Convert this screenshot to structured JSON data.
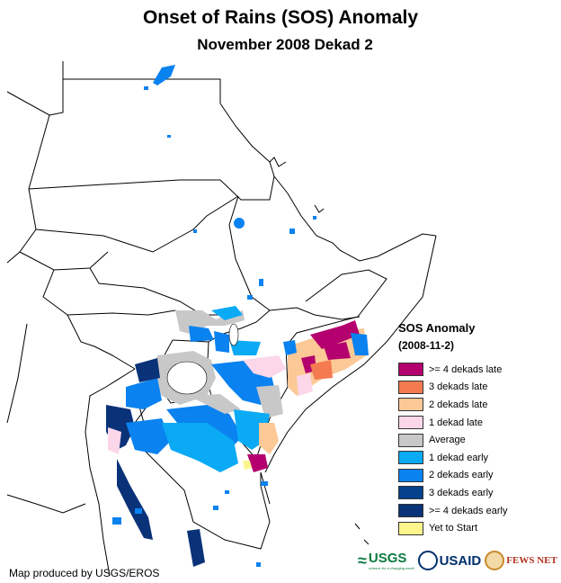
{
  "map": {
    "title": "Onset of Rains (SOS) Anomaly",
    "subtitle": "November 2008 Dekad 2",
    "credit": "Map produced by USGS/EROS"
  },
  "legend": {
    "title": "SOS Anomaly",
    "period": "(2008-11-2)",
    "items": [
      {
        "label": ">= 4 dekads late",
        "color": "#b4006e"
      },
      {
        "label": "3 dekads late",
        "color": "#f47a50"
      },
      {
        "label": "2 dekads late",
        "color": "#fcc896"
      },
      {
        "label": "1 dekad late",
        "color": "#fcd7ea"
      },
      {
        "label": "Average",
        "color": "#c8c8c8"
      },
      {
        "label": "1 dekad early",
        "color": "#0aaaf5"
      },
      {
        "label": "2 dekads early",
        "color": "#0a82f0"
      },
      {
        "label": "3 dekads early",
        "color": "#05418c"
      },
      {
        "label": ">= 4 dekads early",
        "color": "#0a3278"
      },
      {
        "label": "Yet to Start",
        "color": "#fcf58c"
      }
    ]
  },
  "logos": {
    "usgs": "USGS",
    "usgs_tagline": "science for a changing world",
    "usaid": "USAID",
    "fews": "FEWS NET"
  }
}
